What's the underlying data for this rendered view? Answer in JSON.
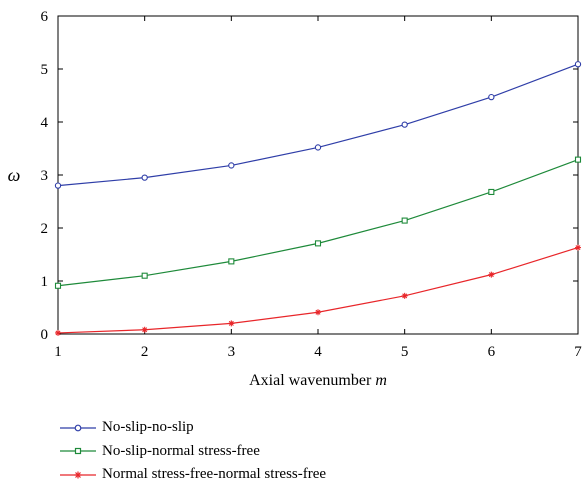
{
  "chart_data": {
    "type": "line",
    "x": [
      1,
      2,
      3,
      4,
      5,
      6,
      7
    ],
    "series": [
      {
        "name": "No-slip-no-slip",
        "values": [
          2.8,
          2.95,
          3.18,
          3.52,
          3.95,
          4.47,
          5.09
        ],
        "color": "#2f3ea8",
        "marker": "circle"
      },
      {
        "name": "No-slip-normal stress-free",
        "values": [
          0.91,
          1.1,
          1.37,
          1.71,
          2.14,
          2.68,
          3.29
        ],
        "color": "#1e8a3a",
        "marker": "square"
      },
      {
        "name": "Normal stress-free-normal stress-free",
        "values": [
          0.02,
          0.08,
          0.2,
          0.41,
          0.72,
          1.12,
          1.63
        ],
        "color": "#e8262a",
        "marker": "star"
      }
    ],
    "xlabel_text": "Axial wavenumber ",
    "xlabel_var": "m",
    "ylabel": "ω",
    "xlim": [
      1,
      7
    ],
    "ylim": [
      0,
      6
    ],
    "xticks": [
      1,
      2,
      3,
      4,
      5,
      6,
      7
    ],
    "yticks": [
      0,
      1,
      2,
      3,
      4,
      5,
      6
    ],
    "grid": false,
    "legend_position": "bottom-left"
  }
}
